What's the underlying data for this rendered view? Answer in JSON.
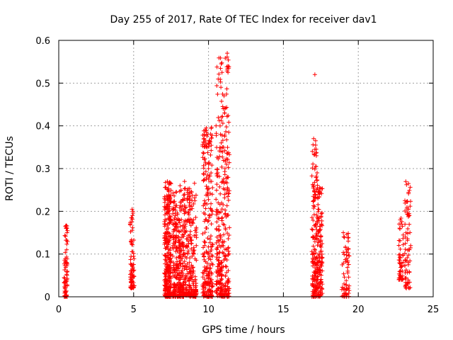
{
  "chart_data": {
    "type": "scatter",
    "title": "Day 255 of 2017, Rate Of TEC Index for receiver dav1",
    "xlabel": "GPS time / hours",
    "ylabel": "ROTI / TECUs",
    "xlim": [
      0,
      25
    ],
    "ylim": [
      0,
      0.6
    ],
    "xticks": [
      0,
      5,
      10,
      15,
      20,
      25
    ],
    "yticks": [
      0,
      0.1,
      0.2,
      0.3,
      0.4,
      0.5,
      0.6
    ],
    "xtick_labels": [
      "0",
      "5",
      "10",
      "15",
      "20",
      "25"
    ],
    "ytick_labels": [
      "0",
      "0.1",
      "0.2",
      "0.3",
      "0.4",
      "0.5",
      "0.6"
    ],
    "grid": true,
    "marker": "+",
    "color": "#ff0000",
    "clusters": [
      {
        "x_range": [
          0.35,
          0.6
        ],
        "y_range": [
          0.0,
          0.17
        ],
        "count": 70
      },
      {
        "x_range": [
          4.75,
          5.05
        ],
        "y_range": [
          0.02,
          0.2
        ],
        "count": 80
      },
      {
        "x_range": [
          7.05,
          7.5
        ],
        "y_range": [
          0.0,
          0.27
        ],
        "count": 280
      },
      {
        "x_range": [
          7.6,
          8.3
        ],
        "y_range": [
          0.0,
          0.25
        ],
        "count": 260
      },
      {
        "x_range": [
          8.3,
          9.2
        ],
        "y_range": [
          0.0,
          0.27
        ],
        "count": 260
      },
      {
        "x_range": [
          9.6,
          10.3
        ],
        "y_range": [
          0.0,
          0.4
        ],
        "count": 240
      },
      {
        "x_range": [
          10.5,
          11.4
        ],
        "y_range": [
          0.0,
          0.57
        ],
        "count": 320
      },
      {
        "x_range": [
          16.9,
          17.3
        ],
        "y_range": [
          0.0,
          0.37
        ],
        "count": 170
      },
      {
        "x_range": [
          17.3,
          17.6
        ],
        "y_range": [
          0.0,
          0.26
        ],
        "count": 110
      },
      {
        "x_range": [
          18.9,
          19.4
        ],
        "y_range": [
          0.0,
          0.15
        ],
        "count": 60
      },
      {
        "x_range": [
          22.7,
          23.0
        ],
        "y_range": [
          0.04,
          0.19
        ],
        "count": 50
      },
      {
        "x_range": [
          23.1,
          23.5
        ],
        "y_range": [
          0.02,
          0.27
        ],
        "count": 70
      }
    ],
    "points": [
      [
        0.45,
        0.165
      ],
      [
        0.5,
        0.16
      ],
      [
        4.9,
        0.205
      ],
      [
        4.95,
        0.2
      ],
      [
        7.25,
        0.27
      ],
      [
        7.3,
        0.25
      ],
      [
        7.45,
        0.22
      ],
      [
        8.1,
        0.26
      ],
      [
        8.4,
        0.27
      ],
      [
        8.6,
        0.24
      ],
      [
        9.85,
        0.395
      ],
      [
        9.9,
        0.35
      ],
      [
        10.0,
        0.3
      ],
      [
        10.2,
        0.27
      ],
      [
        10.25,
        0.24
      ],
      [
        10.85,
        0.545
      ],
      [
        10.9,
        0.525
      ],
      [
        10.95,
        0.445
      ],
      [
        10.98,
        0.44
      ],
      [
        10.8,
        0.38
      ],
      [
        11.25,
        0.57
      ],
      [
        11.3,
        0.54
      ],
      [
        11.35,
        0.535
      ],
      [
        11.3,
        0.525
      ],
      [
        11.35,
        0.385
      ],
      [
        10.85,
        0.36
      ],
      [
        11.0,
        0.35
      ],
      [
        11.2,
        0.31
      ],
      [
        11.1,
        0.3
      ],
      [
        11.25,
        0.28
      ],
      [
        17.1,
        0.52
      ],
      [
        17.15,
        0.365
      ],
      [
        17.15,
        0.355
      ],
      [
        17.1,
        0.345
      ],
      [
        17.2,
        0.33
      ],
      [
        17.25,
        0.29
      ],
      [
        17.4,
        0.255
      ],
      [
        17.45,
        0.245
      ],
      [
        19.0,
        0.15
      ],
      [
        19.3,
        0.06
      ],
      [
        22.8,
        0.18
      ],
      [
        22.85,
        0.17
      ],
      [
        23.35,
        0.265
      ],
      [
        23.35,
        0.205
      ],
      [
        23.4,
        0.19
      ]
    ]
  }
}
